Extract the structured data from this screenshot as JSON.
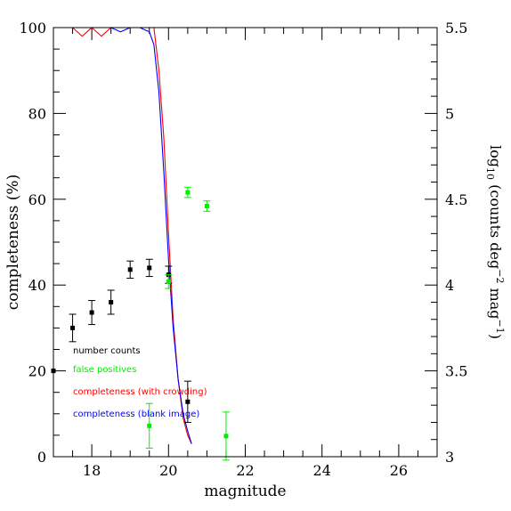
{
  "chart_data": {
    "type": "scatter",
    "xlabel": "magnitude",
    "ylabel_left": "completeness (%)",
    "ylabel_right": {
      "prefix": "log",
      "sub": "10",
      "mid1": " (counts deg",
      "sup1": "−2",
      "mid2": " mag",
      "sup2": "−1",
      "suffix": ")"
    },
    "xlim": [
      17,
      27
    ],
    "ylim_left": [
      0,
      100
    ],
    "ylim_right": [
      3,
      5.5
    ],
    "x_ticks": [
      {
        "value": 18,
        "label": "18"
      },
      {
        "value": 20,
        "label": "20"
      },
      {
        "value": 22,
        "label": "22"
      },
      {
        "value": 24,
        "label": "24"
      },
      {
        "value": 26,
        "label": "26"
      }
    ],
    "y_left_ticks": [
      {
        "value": 0,
        "label": "0"
      },
      {
        "value": 20,
        "label": "20"
      },
      {
        "value": 40,
        "label": "40"
      },
      {
        "value": 60,
        "label": "60"
      },
      {
        "value": 80,
        "label": "80"
      },
      {
        "value": 100,
        "label": "100"
      }
    ],
    "y_right_ticks": [
      {
        "value": 3,
        "label": "3"
      },
      {
        "value": 3.5,
        "label": "3.5"
      },
      {
        "value": 4,
        "label": "4"
      },
      {
        "value": 4.5,
        "label": "4.5"
      },
      {
        "value": 5,
        "label": "5"
      },
      {
        "value": 5.5,
        "label": "5.5"
      }
    ],
    "legend": {
      "placement": "lower-left",
      "items": [
        {
          "label": "number counts",
          "color": "#000000"
        },
        {
          "label": "false positives",
          "color": "#00ee00"
        },
        {
          "label": "completeness (with crowding)",
          "color": "#ff0000"
        },
        {
          "label": "completeness (blank image)",
          "color": "#0000ff"
        }
      ]
    },
    "series": [
      {
        "kind": "points",
        "axis": "right",
        "color": "#000000",
        "points": [
          {
            "x": 17.0,
            "y": 3.5,
            "err": 0.0
          },
          {
            "x": 17.5,
            "y": 3.75,
            "err": 0.08
          },
          {
            "x": 18.0,
            "y": 3.84,
            "err": 0.07
          },
          {
            "x": 18.5,
            "y": 3.9,
            "err": 0.07
          },
          {
            "x": 19.0,
            "y": 4.09,
            "err": 0.05
          },
          {
            "x": 19.5,
            "y": 4.1,
            "err": 0.05
          },
          {
            "x": 20.0,
            "y": 4.06,
            "err": 0.05
          },
          {
            "x": 20.5,
            "y": 3.32,
            "err": 0.12
          }
        ]
      },
      {
        "kind": "points",
        "axis": "right",
        "color": "#00ee00",
        "points": [
          {
            "x": 19.5,
            "y": 3.18,
            "err": 0.13
          },
          {
            "x": 20.0,
            "y": 4.02,
            "err": 0.04
          },
          {
            "x": 20.5,
            "y": 4.54,
            "err": 0.03
          },
          {
            "x": 21.0,
            "y": 4.46,
            "err": 0.03
          },
          {
            "x": 21.5,
            "y": 3.12,
            "err": 0.14
          }
        ]
      },
      {
        "kind": "line",
        "axis": "left",
        "color": "#ff0000",
        "x": [
          17.5,
          17.75,
          18.0,
          18.25,
          18.5,
          18.75,
          19.0,
          19.25,
          19.5,
          19.62,
          19.75,
          19.88,
          20.0,
          20.12,
          20.25,
          20.38,
          20.5,
          20.6
        ],
        "y": [
          100,
          98,
          100,
          98,
          100,
          100,
          100,
          100,
          100,
          100,
          90,
          74,
          52,
          32,
          18,
          9,
          5,
          3
        ]
      },
      {
        "kind": "line",
        "axis": "left",
        "color": "#0000ff",
        "x": [
          17.5,
          17.75,
          18.0,
          18.25,
          18.5,
          18.75,
          19.0,
          19.25,
          19.5,
          19.62,
          19.75,
          19.88,
          20.0,
          20.12,
          20.25,
          20.38,
          20.5,
          20.6
        ],
        "y": [
          100,
          100,
          100,
          100,
          100,
          99,
          100,
          100,
          99,
          96,
          85,
          66,
          46,
          30,
          18,
          10,
          6,
          3
        ]
      }
    ]
  }
}
